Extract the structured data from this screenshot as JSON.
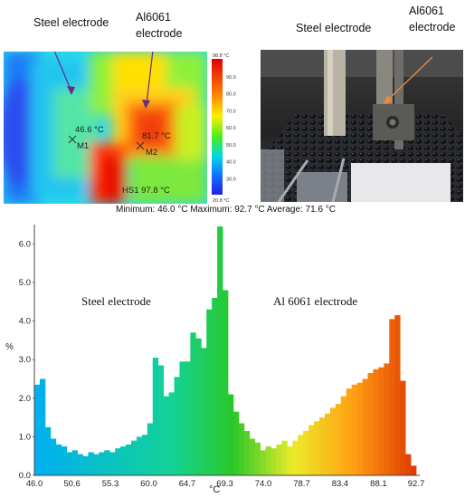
{
  "thermal_image": {
    "label_steel": "Steel electrode",
    "label_al_line1": "Al6061",
    "label_al_line2": "electrode",
    "m1_reading": "46.6 °C",
    "m1_label": "M1",
    "m2_reading": "81.7 °C",
    "m2_label": "M2",
    "hotspot": "HS1 97.8 °C",
    "scale_max": "98.8 °C",
    "scale_min": "20.8 °C",
    "scale_ticks": [
      "90.0",
      "80.0",
      "70.0",
      "60.0",
      "50.0",
      "40.0",
      "30.0"
    ],
    "marker_color": "#6a2a8a"
  },
  "photo": {
    "label_steel": "Steel electrode",
    "label_al_line1": "Al6061",
    "label_al_line2": "electrode",
    "arrow_color": "#f08a3c"
  },
  "stats_line": "Minimum: 46.0 °C Maximum: 92.7 °C Average: 71.6 °C",
  "chart_data": {
    "type": "bar",
    "xlabel": "°C",
    "ylabel": "%",
    "ylim": [
      0,
      6.5
    ],
    "xlim": [
      46.0,
      92.7
    ],
    "x_ticks": [
      "46.0",
      "50.6",
      "55.3",
      "60.0",
      "64.7",
      "69.3",
      "74.0",
      "78.7",
      "83.4",
      "88.1",
      "92.7"
    ],
    "y_ticks": [
      "0.0",
      "1.0",
      "2.0",
      "3.0",
      "4.0",
      "5.0",
      "6.0"
    ],
    "annotations": [
      "Steel electrode",
      "Al 6061 electrode"
    ],
    "values": [
      2.35,
      2.5,
      1.25,
      0.95,
      0.8,
      0.75,
      0.6,
      0.65,
      0.55,
      0.5,
      0.6,
      0.55,
      0.6,
      0.65,
      0.6,
      0.7,
      0.75,
      0.8,
      0.9,
      1.0,
      1.05,
      1.35,
      3.05,
      2.85,
      2.05,
      2.15,
      2.55,
      2.95,
      2.95,
      3.7,
      3.55,
      3.3,
      4.3,
      4.6,
      6.45,
      4.8,
      2.1,
      1.65,
      1.35,
      1.15,
      0.95,
      0.85,
      0.65,
      0.75,
      0.7,
      0.8,
      0.9,
      0.75,
      0.9,
      1.05,
      1.15,
      1.3,
      1.4,
      1.5,
      1.6,
      1.75,
      1.85,
      2.05,
      2.25,
      2.35,
      2.4,
      2.5,
      2.65,
      2.75,
      2.8,
      2.9,
      4.05,
      4.15,
      2.45,
      0.55,
      0.25
    ]
  }
}
